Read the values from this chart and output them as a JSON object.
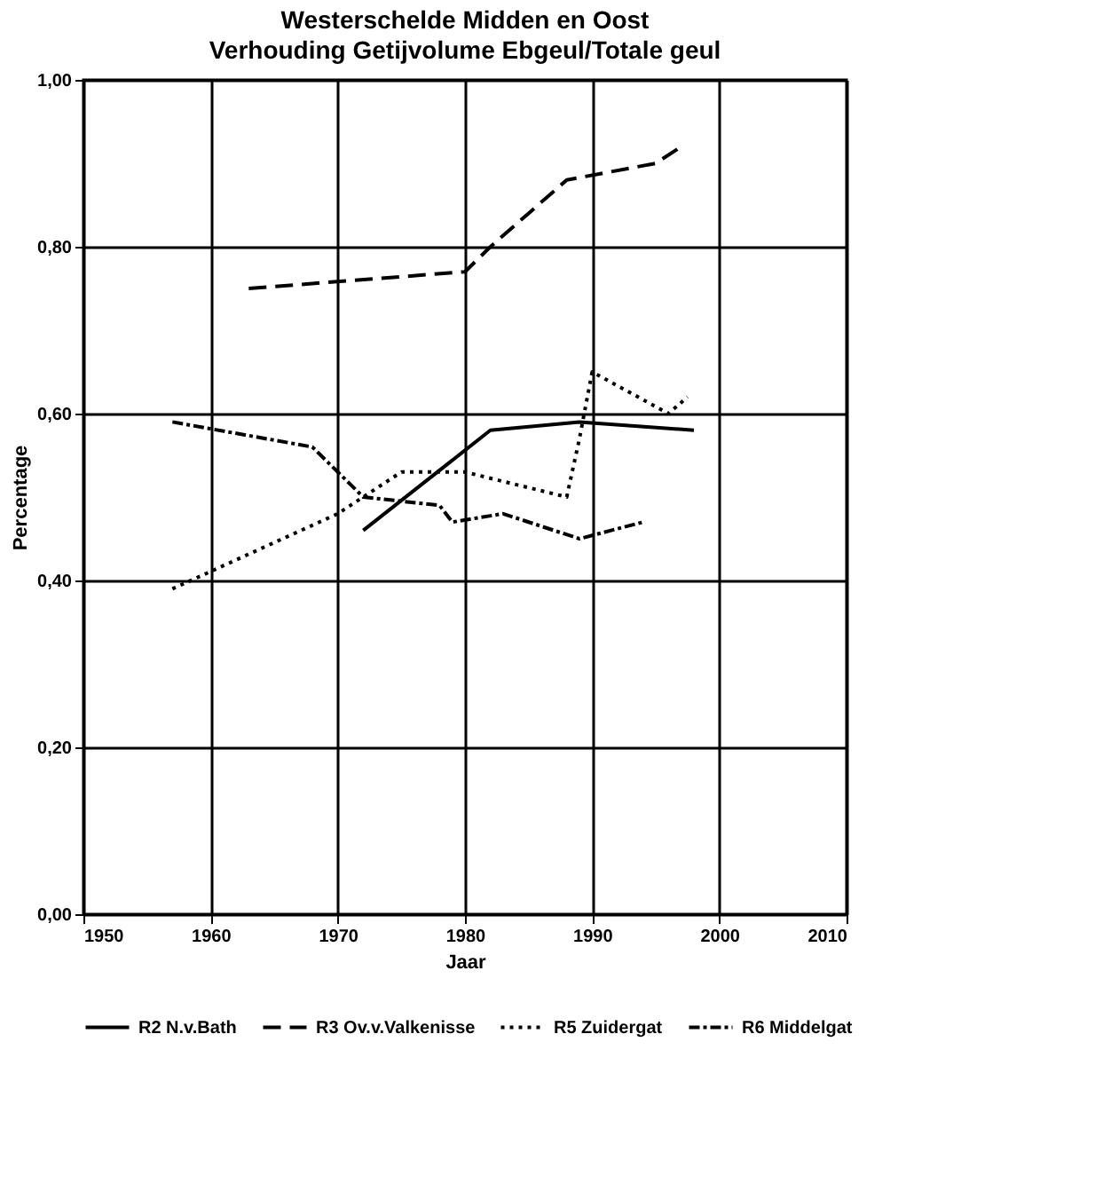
{
  "chart_data": {
    "type": "line",
    "title": "Westerschelde Midden en Oost",
    "subtitle": "Verhouding Getijvolume Ebgeul/Totale geul",
    "xlabel": "Jaar",
    "ylabel": "Percentage",
    "xlim": [
      1950,
      2010
    ],
    "xticks": [
      1950,
      1960,
      1970,
      1980,
      1990,
      2000,
      2010
    ],
    "ylim": [
      0,
      1
    ],
    "yticks": [
      {
        "value": 0,
        "label": "0,00"
      },
      {
        "value": 0.2,
        "label": "0,20"
      },
      {
        "value": 0.4,
        "label": "0,40"
      },
      {
        "value": 0.6,
        "label": "0,60"
      },
      {
        "value": 0.8,
        "label": "0,80"
      },
      {
        "value": 1,
        "label": "1,00"
      }
    ],
    "grid": true,
    "legend": "bottom",
    "series": [
      {
        "name": "R2 N.v.Bath",
        "color": "#000000",
        "line_style": "solid",
        "x": [
          1972,
          1982,
          1989,
          1998
        ],
        "values": [
          0.46,
          0.58,
          0.59,
          0.58
        ]
      },
      {
        "name": "R3 Ov.v.Valkenisse",
        "color": "#000000",
        "line_style": "dashed",
        "x": [
          1963,
          1980,
          1982,
          1985,
          1988,
          1995,
          1997
        ],
        "values": [
          0.75,
          0.77,
          0.8,
          0.84,
          0.88,
          0.9,
          0.92
        ]
      },
      {
        "name": "R5 Zuidergat",
        "color": "#000000",
        "line_style": "dotted",
        "x": [
          1957,
          1970,
          1975,
          1980,
          1988,
          1989,
          1990,
          1996,
          1997.5
        ],
        "values": [
          0.39,
          0.48,
          0.53,
          0.53,
          0.5,
          0.57,
          0.65,
          0.6,
          0.62
        ]
      },
      {
        "name": "R6 Middelgat",
        "color": "#000000",
        "line_style": "dashdot",
        "x": [
          1957,
          1968,
          1970,
          1972,
          1978,
          1979,
          1983,
          1989,
          1994
        ],
        "values": [
          0.59,
          0.56,
          0.53,
          0.5,
          0.49,
          0.47,
          0.48,
          0.45,
          0.47
        ]
      }
    ]
  }
}
